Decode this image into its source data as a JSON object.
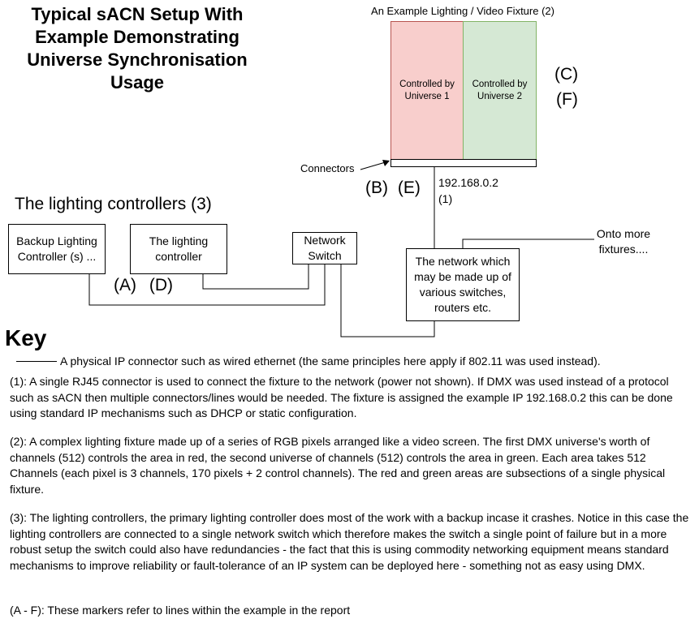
{
  "title": "Typical sACN Setup With Example Demonstrating Universe Synchronisation Usage",
  "fixture": {
    "caption": "An Example Lighting / Video Fixture (2)",
    "zone_red": "Controlled by Universe 1",
    "zone_green": "Controlled by Universe 2",
    "markers_cf": [
      "(C)",
      "(F)"
    ],
    "connectors_label": "Connectors",
    "markers_be": "(B) (E)",
    "ip_label": "192.168.0.2",
    "ip_ref": "(1)"
  },
  "controllers": {
    "heading": "The lighting controllers (3)",
    "backup": "Backup Lighting Controller (s) ...",
    "primary": "The lighting controller",
    "markers_ad": "(A) (D)"
  },
  "network_switch": "Network Switch",
  "network": {
    "box": "The network which may be made up of various switches, routers etc.",
    "more": "Onto more fixtures...."
  },
  "key": {
    "heading": "Key",
    "line_desc": "A physical IP connector such as wired ethernet (the same principles here apply if 802.11 was used instead).",
    "note1": "(1): A single RJ45 connector is used to connect the fixture to the network (power not shown). If DMX was used instead of a protocol such as sACN then multiple connectors/lines would be needed. The fixture is assigned the example IP 192.168.0.2 this can be done using standard IP mechanisms such as DHCP or static configuration.",
    "note2": "(2): A complex lighting fixture made up of a series of RGB pixels arranged like a video screen. The first DMX universe's worth of channels (512) controls the area in red, the second universe of channels (512) controls the area in green. Each area takes 512 Channels (each pixel is 3 channels, 170 pixels + 2 control channels). The red and green areas are subsections of a single physical fixture.",
    "note3": "(3): The lighting controllers, the primary lighting controller does most of the work with a backup incase it crashes. Notice in this case the lighting controllers are connected to a single network switch which therefore makes the switch a single point of failure but in a more robust setup the switch could also have redundancies - the fact that this is using commodity networking equipment means standard mechanisms to improve reliability or fault-tolerance of an IP system can be deployed here - something not as easy using DMX.",
    "note4": "(A - F): These markers refer to lines within the example in the report"
  }
}
